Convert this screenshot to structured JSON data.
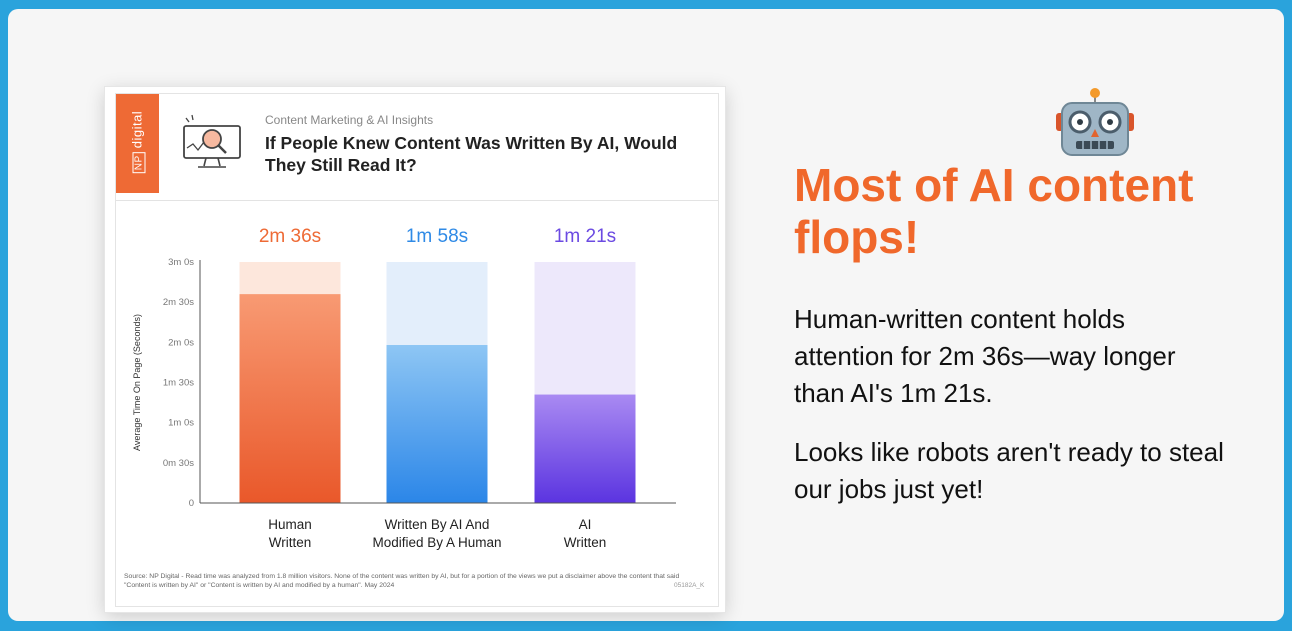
{
  "card": {
    "brand": {
      "np": "NP",
      "name": "digital"
    },
    "kicker": "Content Marketing & AI Insights",
    "title": "If People Knew Content Was Written By AI, Would They Still Read It?",
    "footnote": "Source: NP Digital - Read time was analyzed from 1.8 million visitors. None of the content was written by AI, but for a portion of the views we put a disclaimer above the content that said \"Content is written by AI\" or \"Content is written by AI and modified by a human\". May 2024",
    "footnote_code": "05182A_K"
  },
  "slide": {
    "headline": "Most of AI content flops!",
    "paragraph1": "Human-written content holds attention for 2m 36s—way longer than AI's 1m 21s.",
    "paragraph2": "Looks like robots aren't ready to steal our jobs just yet!",
    "robot_icon": "robot-face-icon"
  },
  "chart_data": {
    "type": "bar",
    "ylabel": "Average Time On Page (Seconds)",
    "ylim": [
      0,
      180
    ],
    "yticks": [
      {
        "value": 0,
        "label": "0"
      },
      {
        "value": 30,
        "label": "0m 30s"
      },
      {
        "value": 60,
        "label": "1m 0s"
      },
      {
        "value": 90,
        "label": "1m 30s"
      },
      {
        "value": 120,
        "label": "2m 0s"
      },
      {
        "value": 150,
        "label": "2m 30s"
      },
      {
        "value": 180,
        "label": "3m 0s"
      }
    ],
    "categories": [
      {
        "line1": "Human",
        "line2": "Written"
      },
      {
        "line1": "Written By AI And",
        "line2": "Modified By A Human"
      },
      {
        "line1": "AI",
        "line2": "Written"
      }
    ],
    "values": [
      156,
      118,
      81
    ],
    "value_labels": [
      "2m 36s",
      "1m 58s",
      "1m 21s"
    ],
    "colors": [
      {
        "top": "#f89a73",
        "bottom": "#e9582a",
        "bg": "#fde7dc",
        "label": "#ee6a35"
      },
      {
        "top": "#8ec6f4",
        "bottom": "#2b86e8",
        "bg": "#e3eefb",
        "label": "#2f8ae6"
      },
      {
        "top": "#a98af2",
        "bottom": "#5b34e0",
        "bg": "#ede8fb",
        "label": "#6b4ae2"
      }
    ]
  }
}
